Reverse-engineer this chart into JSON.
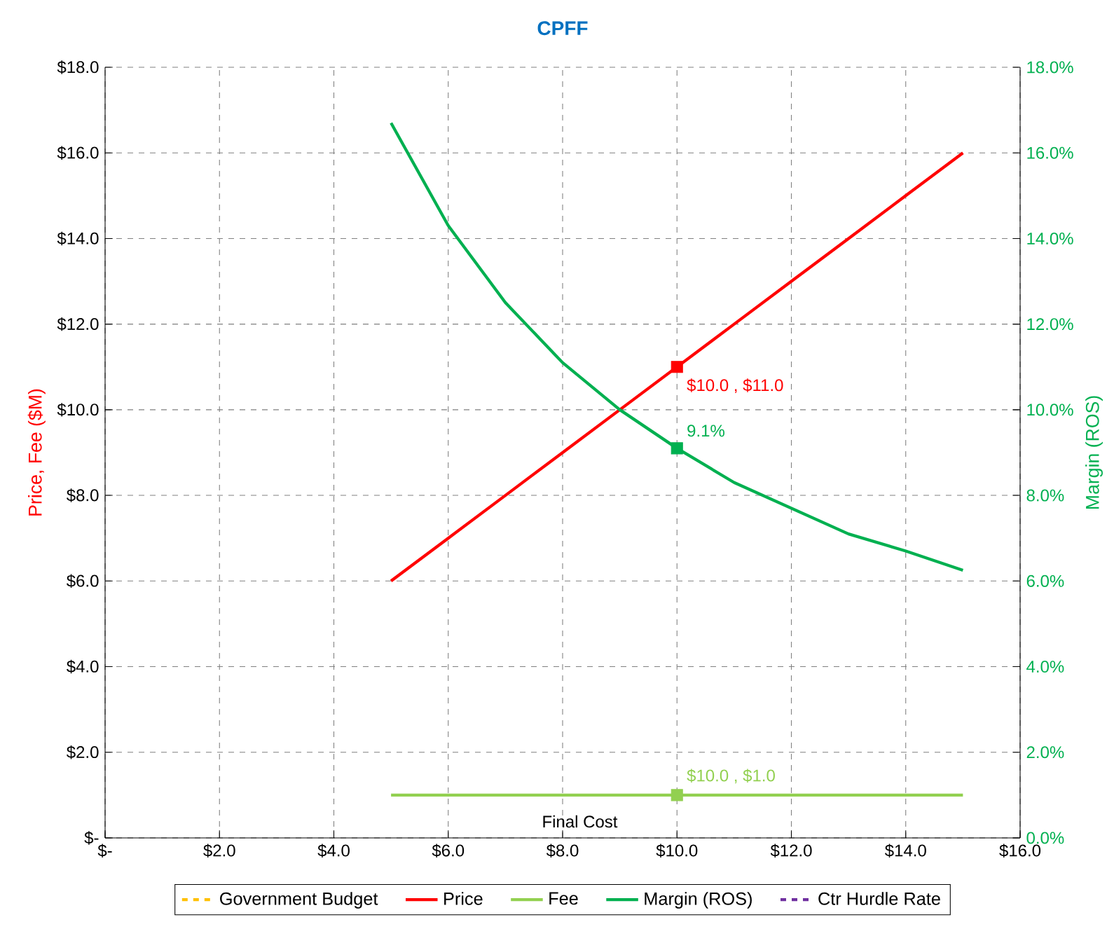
{
  "chart_data": {
    "type": "line",
    "subtitle": "CPFF",
    "xlabel": "Final Cost",
    "ylabel": "Price, Fee ($M)",
    "y2label": "Margin (ROS)",
    "xlim": [
      0,
      16
    ],
    "ylim": [
      0,
      18
    ],
    "y2lim": [
      0,
      18
    ],
    "xticks": [
      {
        "value": 0,
        "label": "$-"
      },
      {
        "value": 2,
        "label": "$2.0"
      },
      {
        "value": 4,
        "label": "$4.0"
      },
      {
        "value": 6,
        "label": "$6.0"
      },
      {
        "value": 8,
        "label": "$8.0"
      },
      {
        "value": 10,
        "label": "$10.0"
      },
      {
        "value": 12,
        "label": "$12.0"
      },
      {
        "value": 14,
        "label": "$14.0"
      },
      {
        "value": 16,
        "label": "$16.0"
      }
    ],
    "yticks": [
      {
        "value": 0,
        "label": "$-"
      },
      {
        "value": 2,
        "label": "$2.0"
      },
      {
        "value": 4,
        "label": "$4.0"
      },
      {
        "value": 6,
        "label": "$6.0"
      },
      {
        "value": 8,
        "label": "$8.0"
      },
      {
        "value": 10,
        "label": "$10.0"
      },
      {
        "value": 12,
        "label": "$12.0"
      },
      {
        "value": 14,
        "label": "$14.0"
      },
      {
        "value": 16,
        "label": "$16.0"
      },
      {
        "value": 18,
        "label": "$18.0"
      }
    ],
    "y2ticks": [
      {
        "value": 0,
        "label": "0.0%"
      },
      {
        "value": 2,
        "label": "2.0%"
      },
      {
        "value": 4,
        "label": "4.0%"
      },
      {
        "value": 6,
        "label": "6.0%"
      },
      {
        "value": 8,
        "label": "8.0%"
      },
      {
        "value": 10,
        "label": "10.0%"
      },
      {
        "value": 12,
        "label": "12.0%"
      },
      {
        "value": 14,
        "label": "14.0%"
      },
      {
        "value": 16,
        "label": "16.0%"
      },
      {
        "value": 18,
        "label": "18.0%"
      }
    ],
    "grid": true,
    "legend": "bottom",
    "series": [
      {
        "name": "Government Budget",
        "color": "#ffc000",
        "line_style": "dashed"
      },
      {
        "name": "Price",
        "color": "#ff0000",
        "x": [
          5,
          6,
          7,
          8,
          9,
          10,
          11,
          12,
          13,
          14,
          15
        ],
        "values": [
          6,
          7,
          8,
          9,
          10,
          11,
          12,
          13,
          14,
          15,
          16
        ]
      },
      {
        "name": "Fee",
        "color": "#92d050",
        "x": [
          5,
          6,
          7,
          8,
          9,
          10,
          11,
          12,
          13,
          14,
          15
        ],
        "values": [
          1,
          1,
          1,
          1,
          1,
          1,
          1,
          1,
          1,
          1,
          1
        ]
      },
      {
        "name": "Margin (ROS)",
        "color": "#00b050",
        "axis": "y2",
        "x": [
          5,
          6,
          7,
          8,
          9,
          10,
          11,
          12,
          13,
          14,
          15
        ],
        "values": [
          16.7,
          14.3,
          12.5,
          11.1,
          10.0,
          9.1,
          8.3,
          7.7,
          7.1,
          6.7,
          6.25
        ]
      },
      {
        "name": "Ctr Hurdle Rate",
        "color": "#7030a0",
        "line_style": "dashed",
        "axis": "y2"
      },
      {
        "type": "scatter",
        "marker": "square",
        "color": "#ff0000",
        "x": [
          10
        ],
        "values": [
          11
        ],
        "value_labels": [
          "$10.0 , $11.0"
        ]
      },
      {
        "type": "scatter",
        "marker": "square",
        "color": "#92d050",
        "x": [
          10
        ],
        "values": [
          1
        ],
        "value_labels": [
          "$10.0 , $1.0"
        ]
      },
      {
        "type": "scatter",
        "marker": "square",
        "color": "#00b050",
        "axis": "y2",
        "x": [
          10
        ],
        "values": [
          9.1
        ],
        "value_labels": [
          "9.1%"
        ]
      }
    ]
  }
}
